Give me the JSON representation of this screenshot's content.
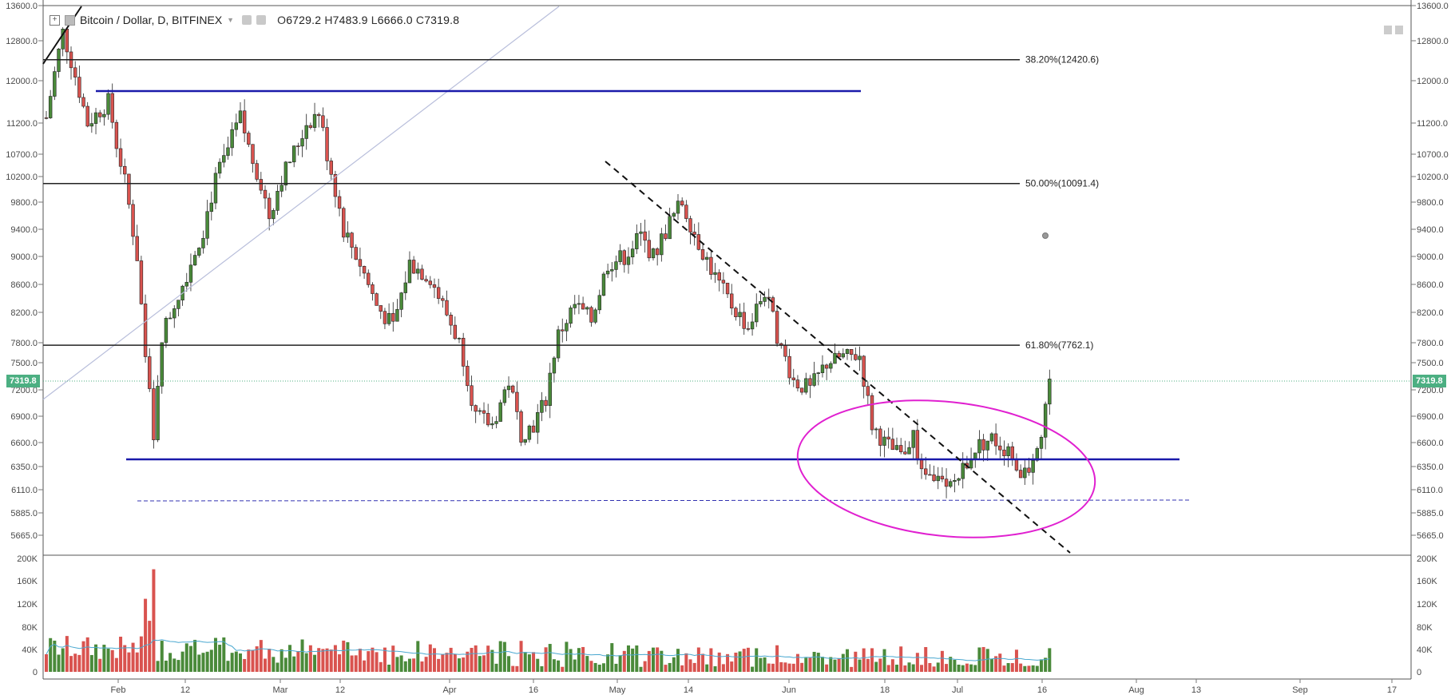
{
  "legend": {
    "title": "Bitcoin / Dollar, D, BITFINEX",
    "open_label": "O",
    "open": "6729.2",
    "high_label": "H",
    "high": "7483.9",
    "low_label": "L",
    "low": "6666.0",
    "close_label": "C",
    "close": "7319.8"
  },
  "last_price_tag": "7319.8",
  "price_axis": {
    "ticks": [
      "5665.0",
      "5885.0",
      "6110.0",
      "6350.0",
      "6600.0",
      "6900.0",
      "7200.0",
      "7500.0",
      "7800.0",
      "8200.0",
      "8600.0",
      "9000.0",
      "9400.0",
      "9800.0",
      "10200.0",
      "10700.0",
      "11200.0",
      "12000.0",
      "12800.0",
      "13600.0"
    ]
  },
  "volume_axis": {
    "ticks": [
      "0",
      "40K",
      "80K",
      "120K",
      "160K",
      "200K"
    ]
  },
  "time_axis": {
    "labels": [
      "Feb",
      "12",
      "Mar",
      "12",
      "Apr",
      "16",
      "May",
      "14",
      "Jun",
      "18",
      "Jul",
      "16",
      "Aug",
      "13",
      "Sep",
      "17"
    ]
  },
  "fib_levels": [
    {
      "label": "38.20%(12420.6)",
      "price": 12420.6
    },
    {
      "label": "50.00%(10091.4)",
      "price": 10091.4
    },
    {
      "label": "61.80%(7762.1)",
      "price": 7762.1
    }
  ],
  "drawings": {
    "support_line_color": "#1a1aaa",
    "circle_color": "#e020d0",
    "fib_color": "#222222",
    "up_color": "#4a8a3a",
    "down_color": "#d9534f",
    "volume_ma_color": "#4aa8d0"
  },
  "chart_data": {
    "type": "candlestick",
    "symbol": "Bitcoin / Dollar, D, BITFINEX",
    "last": {
      "open": 6729.2,
      "high": 7483.9,
      "low": 6666.0,
      "close": 7319.8
    },
    "ylim": [
      5500,
      13700
    ],
    "grid": false
  }
}
